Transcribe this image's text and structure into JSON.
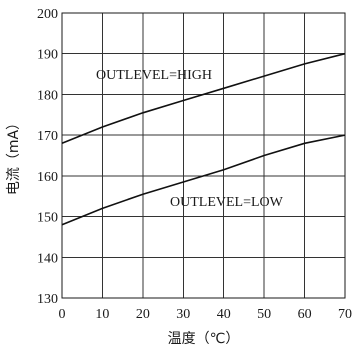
{
  "chart_data": {
    "type": "line",
    "xlabel": "温度（℃）",
    "ylabel": "电流（mA）",
    "xlim": [
      0,
      70
    ],
    "ylim": [
      130,
      200
    ],
    "xticks": [
      "0",
      "10",
      "20",
      "30",
      "40",
      "50",
      "60",
      "70"
    ],
    "yticks": [
      "130",
      "140",
      "150",
      "160",
      "170",
      "180",
      "190",
      "200"
    ],
    "grid": true,
    "series": [
      {
        "name": "OUTLEVEL=HIGH",
        "x": [
          0,
          10,
          20,
          30,
          40,
          50,
          60,
          70
        ],
        "y": [
          168,
          172,
          175.5,
          178.5,
          181.5,
          184.5,
          187.5,
          190
        ]
      },
      {
        "name": "OUTLEVEL=LOW",
        "x": [
          0,
          10,
          20,
          30,
          40,
          50,
          60,
          70
        ],
        "y": [
          148,
          152,
          155.5,
          158.5,
          161.5,
          165,
          168,
          170
        ]
      }
    ],
    "annotations": [
      "OUTLEVEL=HIGH",
      "OUTLEVEL=LOW"
    ]
  }
}
